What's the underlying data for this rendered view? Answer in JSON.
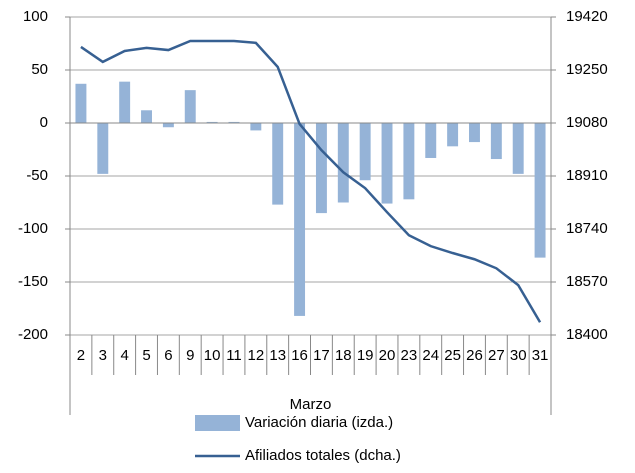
{
  "chart_data": {
    "type": "bar-line",
    "categories": [
      "2",
      "3",
      "4",
      "5",
      "6",
      "9",
      "10",
      "11",
      "12",
      "13",
      "16",
      "17",
      "18",
      "19",
      "20",
      "23",
      "24",
      "25",
      "26",
      "27",
      "30",
      "31"
    ],
    "x_label": "Marzo",
    "series": [
      {
        "name": "Variación diaria (izda.)",
        "type": "bar",
        "axis": "y",
        "color": "#95b3d7",
        "values": [
          37,
          -48,
          39,
          12,
          -4,
          31,
          1,
          1,
          -7,
          -77,
          -182,
          -85,
          -75,
          -54,
          -76,
          -72,
          -33,
          -22,
          -18,
          -34,
          -48,
          -127
        ]
      },
      {
        "name": "Afiliados totales (dcha.)",
        "type": "line",
        "axis": "y2",
        "color": "#376092",
        "values": [
          19324,
          19276,
          19311,
          19321,
          19314,
          19343,
          19343,
          19343,
          19337,
          19260,
          19077,
          18993,
          18922,
          18871,
          18794,
          18720,
          18685,
          18663,
          18643,
          18614,
          18560,
          18441
        ]
      }
    ],
    "ylim": [
      -200,
      100
    ],
    "yticks": [
      -200,
      -150,
      -100,
      -50,
      0,
      50,
      100
    ],
    "y2lim": [
      18400,
      19420
    ],
    "y2ticks": [
      18400,
      18570,
      18740,
      18910,
      19080,
      19250,
      19420
    ],
    "grid": true
  }
}
